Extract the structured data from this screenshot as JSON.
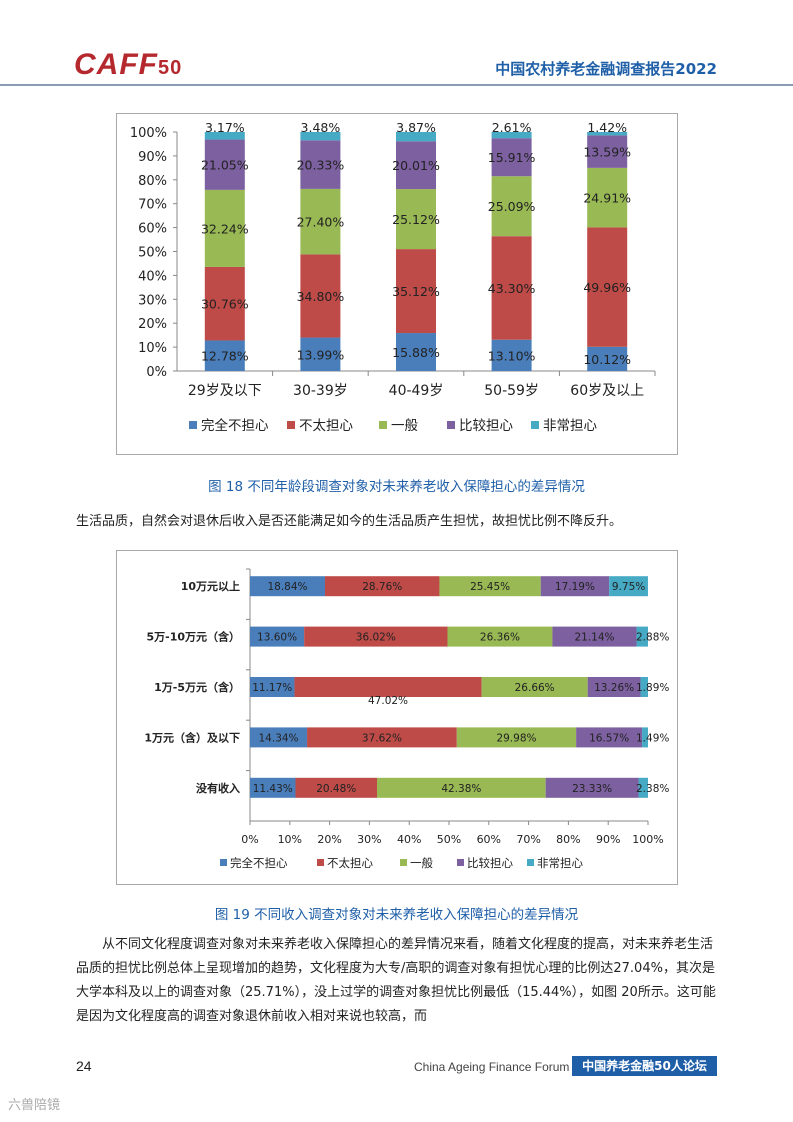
{
  "header": {
    "logo_text": "CAFF",
    "logo_sub": "50",
    "report_title": "中国农村养老金融调查报告2022",
    "accent_color": "#1f5fa8",
    "logo_color": "#b5282e"
  },
  "figures": {
    "fig18_caption": "图 18  不同年龄段调查对象对未来养老收入保障担心的差异情况",
    "fig19_caption": "图 19  不同收入调查对象对未来养老收入保障担心的差异情况"
  },
  "text": {
    "para1": "生活品质，自然会对退休后收入是否还能满足如今的生活品质产生担忧，故担忧比例不降反升。",
    "para2": "从不同文化程度调查对象对未来养老收入保障担心的差异情况来看，随着文化程度的提高，对未来养老生活品质的担忧比例总体上呈现增加的趋势，文化程度为大专/高职的调查对象有担忧心理的比例达27.04%，其次是大学本科及以上的调查对象（25.71%），没上过学的调查对象担忧比例最低（15.44%），如图 20所示。这可能是因为文化程度高的调查对象退休前收入相对来说也较高，而"
  },
  "footer": {
    "page_number": "24",
    "forum_en": "China Ageing Finance Forum",
    "forum_cn": "中国养老金融50人论坛",
    "watermark": "六兽陪镜"
  },
  "chart_data": [
    {
      "type": "bar",
      "orientation": "vertical",
      "stacked": true,
      "title": "",
      "categories": [
        "29岁及以下",
        "30-39岁",
        "40-49岁",
        "50-59岁",
        "60岁及以上"
      ],
      "series": [
        {
          "name": "完全不担心",
          "color": "#4a7ebb",
          "values": [
            12.78,
            13.99,
            15.88,
            13.1,
            10.12
          ],
          "labels": [
            "12.78%",
            "13.99%",
            "15.88%",
            "13.10%",
            "10.12%"
          ]
        },
        {
          "name": "不太担心",
          "color": "#be4b48",
          "values": [
            30.76,
            34.8,
            35.12,
            43.3,
            49.96
          ],
          "labels": [
            "30.76%",
            "34.80%",
            "35.12%",
            "43.30%",
            "49.96%"
          ]
        },
        {
          "name": "一般",
          "color": "#98b954",
          "values": [
            32.24,
            27.4,
            25.12,
            25.09,
            24.91
          ],
          "labels": [
            "32.24%",
            "27.40%",
            "25.12%",
            "25.09%",
            "24.91%"
          ]
        },
        {
          "name": "比较担心",
          "color": "#7d60a0",
          "values": [
            21.05,
            20.33,
            20.01,
            15.91,
            13.59
          ],
          "labels": [
            "21.05%",
            "20.33%",
            "20.01%",
            "15.91%",
            "13.59%"
          ]
        },
        {
          "name": "非常担心",
          "color": "#46aac5",
          "values": [
            3.17,
            3.48,
            3.87,
            2.61,
            1.42
          ],
          "labels": [
            "3.17%",
            "3.48%",
            "3.87%",
            "2.61%",
            "1.42%"
          ]
        }
      ],
      "ylim": [
        0,
        100
      ],
      "yticks": [
        "0%",
        "10%",
        "20%",
        "30%",
        "40%",
        "50%",
        "60%",
        "70%",
        "80%",
        "90%",
        "100%"
      ],
      "legend_position": "bottom"
    },
    {
      "type": "bar",
      "orientation": "horizontal",
      "stacked": true,
      "title": "",
      "categories": [
        "10万元以上",
        "5万-10万元（含）",
        "1万-5万元（含）",
        "1万元（含）及以下",
        "没有收入"
      ],
      "series": [
        {
          "name": "完全不担心",
          "color": "#4a7ebb",
          "values": [
            18.84,
            13.6,
            11.17,
            14.34,
            11.43
          ],
          "labels": [
            "18.84%",
            "13.60%",
            "11.17%",
            "14.34%",
            "11.43%"
          ]
        },
        {
          "name": "不太担心",
          "color": "#be4b48",
          "values": [
            28.76,
            36.02,
            47.02,
            37.62,
            20.48
          ],
          "labels": [
            "28.76%",
            "36.02%",
            "47.02%",
            "37.62%",
            "20.48%"
          ]
        },
        {
          "name": "一般",
          "color": "#98b954",
          "values": [
            25.45,
            26.36,
            26.66,
            29.98,
            42.38
          ],
          "labels": [
            "25.45%",
            "26.36%",
            "26.66%",
            "29.98%",
            "42.38%"
          ]
        },
        {
          "name": "比较担心",
          "color": "#7d60a0",
          "values": [
            17.19,
            21.14,
            13.26,
            16.57,
            23.33
          ],
          "labels": [
            "17.19%",
            "21.14%",
            "13.26%",
            "16.57%",
            "23.33%"
          ]
        },
        {
          "name": "非常担心",
          "color": "#46aac5",
          "values": [
            9.75,
            2.88,
            1.89,
            1.49,
            2.38
          ],
          "labels": [
            "9.75%",
            "2.88%",
            "1.89%",
            "1.49%",
            "2.38%"
          ]
        }
      ],
      "xlim": [
        0,
        100
      ],
      "xticks": [
        "0%",
        "10%",
        "20%",
        "30%",
        "40%",
        "50%",
        "60%",
        "70%",
        "80%",
        "90%",
        "100%"
      ],
      "legend_position": "bottom"
    }
  ]
}
